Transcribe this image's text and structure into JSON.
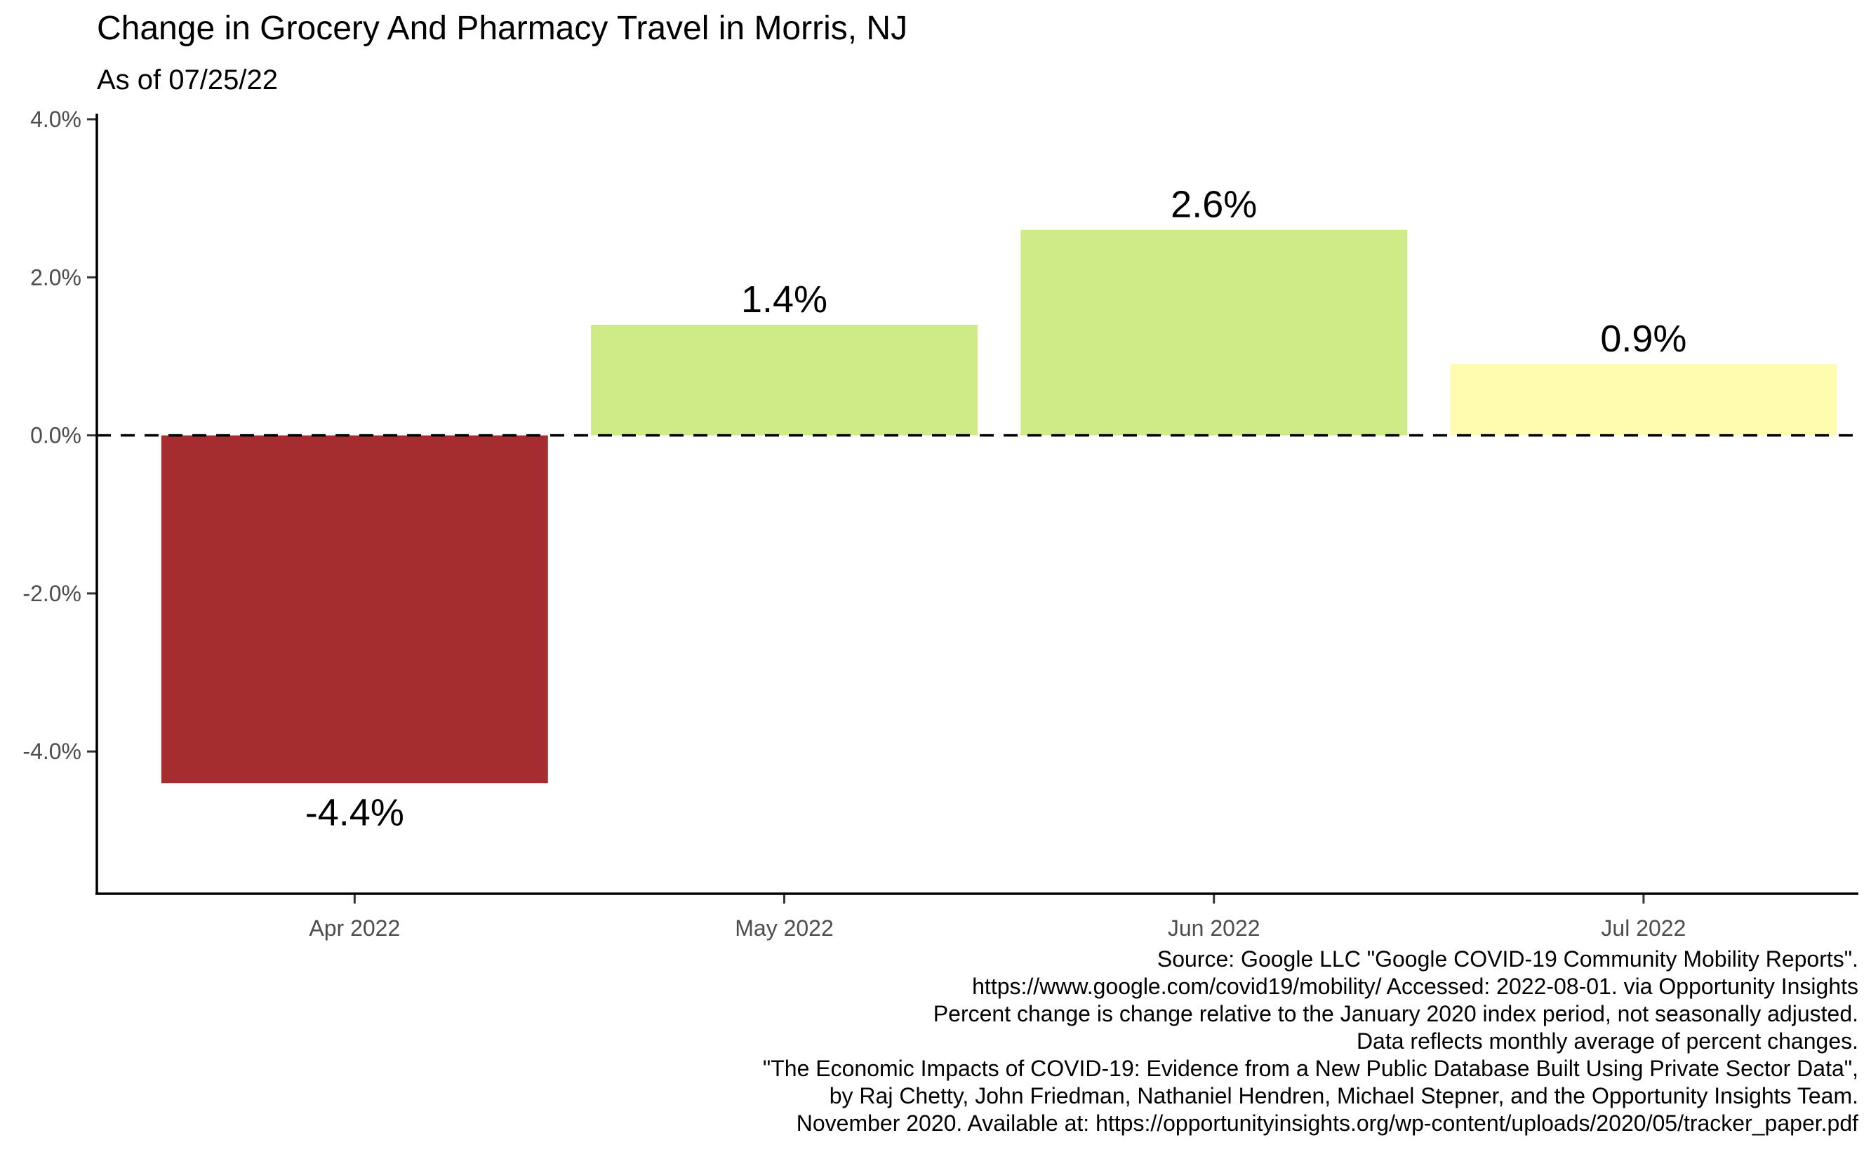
{
  "chart_data": {
    "type": "bar",
    "title": "Change in Grocery And Pharmacy Travel in Morris, NJ",
    "subtitle": "As of 07/25/22",
    "categories": [
      "Apr 2022",
      "May 2022",
      "Jun 2022",
      "Jul 2022"
    ],
    "values": [
      -4.4,
      1.4,
      2.6,
      0.9
    ],
    "value_labels": [
      "-4.4%",
      "1.4%",
      "2.6%",
      "0.9%"
    ],
    "bar_colors": [
      "#a62d2f",
      "#cfeb87",
      "#cfeb87",
      "#fffcb0"
    ],
    "ylim": [
      -5.8,
      4.0
    ],
    "yticks": [
      4.0,
      2.0,
      0.0,
      -2.0,
      -4.0
    ],
    "ytick_labels": [
      "4.0%",
      "2.0%",
      "0.0%",
      "-2.0%",
      "-4.0%"
    ],
    "reference_line": {
      "y": 0,
      "style": "dashed"
    },
    "xlabel": "",
    "ylabel": "",
    "grid": false,
    "legend": "none"
  },
  "caption": [
    "Source: Google LLC \"Google COVID-19 Community Mobility Reports\".",
    "https://www.google.com/covid19/mobility/ Accessed: 2022-08-01. via Opportunity Insights",
    "Percent change is change relative to the January 2020 index period, not seasonally adjusted.",
    "Data reflects monthly average of percent changes.",
    "\"The Economic Impacts of COVID-19: Evidence from a New Public Database Built Using Private Sector Data\",",
    "by Raj Chetty, John Friedman, Nathaniel Hendren, Michael Stepner, and the Opportunity Insights Team.",
    "November 2020. Available at: https://opportunityinsights.org/wp-content/uploads/2020/05/tracker_paper.pdf"
  ]
}
